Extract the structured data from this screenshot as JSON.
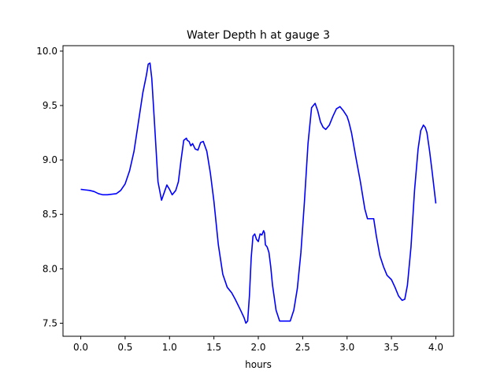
{
  "chart_data": {
    "type": "line",
    "title": "Water Depth h at gauge 3",
    "xlabel": "hours",
    "ylabel": "",
    "xlim": [
      -0.2,
      4.2
    ],
    "ylim": [
      7.38,
      10.05
    ],
    "xticks": [
      0.0,
      0.5,
      1.0,
      1.5,
      2.0,
      2.5,
      3.0,
      3.5,
      4.0
    ],
    "xtick_labels": [
      "0.0",
      "0.5",
      "1.0",
      "1.5",
      "2.0",
      "2.5",
      "3.0",
      "3.5",
      "4.0"
    ],
    "yticks": [
      7.5,
      8.0,
      8.5,
      9.0,
      9.5,
      10.0
    ],
    "ytick_labels": [
      "7.5",
      "8.0",
      "8.5",
      "9.0",
      "9.5",
      "10.0"
    ],
    "grid": false,
    "series": [
      {
        "color": "#0000ff",
        "x": [
          0.0,
          0.05,
          0.1,
          0.15,
          0.2,
          0.25,
          0.3,
          0.4,
          0.45,
          0.5,
          0.55,
          0.6,
          0.65,
          0.7,
          0.74,
          0.76,
          0.78,
          0.8,
          0.83,
          0.87,
          0.91,
          0.94,
          0.97,
          1.0,
          1.03,
          1.07,
          1.1,
          1.13,
          1.16,
          1.19,
          1.2,
          1.22,
          1.24,
          1.26,
          1.29,
          1.32,
          1.35,
          1.38,
          1.42,
          1.46,
          1.5,
          1.55,
          1.6,
          1.65,
          1.7,
          1.74,
          1.8,
          1.84,
          1.86,
          1.88,
          1.9,
          1.92,
          1.94,
          1.96,
          1.98,
          2.0,
          2.02,
          2.04,
          2.06,
          2.07,
          2.08,
          2.1,
          2.12,
          2.14,
          2.16,
          2.2,
          2.24,
          2.28,
          2.32,
          2.36,
          2.4,
          2.44,
          2.48,
          2.52,
          2.56,
          2.6,
          2.64,
          2.67,
          2.7,
          2.73,
          2.76,
          2.8,
          2.84,
          2.88,
          2.92,
          2.96,
          3.0,
          3.02,
          3.05,
          3.1,
          3.15,
          3.2,
          3.23,
          3.26,
          3.3,
          3.33,
          3.37,
          3.41,
          3.45,
          3.5,
          3.54,
          3.58,
          3.62,
          3.65,
          3.68,
          3.72,
          3.76,
          3.8,
          3.83,
          3.86,
          3.88,
          3.9,
          3.93,
          3.96,
          4.0
        ],
        "y": [
          8.73,
          8.725,
          8.72,
          8.71,
          8.69,
          8.68,
          8.68,
          8.69,
          8.72,
          8.78,
          8.9,
          9.08,
          9.35,
          9.62,
          9.78,
          9.88,
          9.89,
          9.75,
          9.35,
          8.8,
          8.63,
          8.7,
          8.77,
          8.73,
          8.68,
          8.72,
          8.8,
          9.0,
          9.18,
          9.2,
          9.18,
          9.17,
          9.13,
          9.15,
          9.1,
          9.09,
          9.16,
          9.17,
          9.08,
          8.88,
          8.62,
          8.22,
          7.95,
          7.83,
          7.78,
          7.72,
          7.62,
          7.55,
          7.5,
          7.52,
          7.75,
          8.1,
          8.3,
          8.32,
          8.27,
          8.25,
          8.32,
          8.31,
          8.35,
          8.33,
          8.22,
          8.2,
          8.15,
          8.02,
          7.85,
          7.62,
          7.52,
          7.52,
          7.52,
          7.52,
          7.62,
          7.82,
          8.15,
          8.62,
          9.15,
          9.48,
          9.52,
          9.45,
          9.35,
          9.3,
          9.28,
          9.32,
          9.4,
          9.47,
          9.49,
          9.45,
          9.4,
          9.35,
          9.25,
          9.02,
          8.8,
          8.55,
          8.46,
          8.46,
          8.46,
          8.3,
          8.12,
          8.02,
          7.94,
          7.9,
          7.83,
          7.75,
          7.71,
          7.72,
          7.85,
          8.2,
          8.72,
          9.1,
          9.27,
          9.32,
          9.3,
          9.25,
          9.08,
          8.88,
          8.6
        ]
      }
    ]
  }
}
